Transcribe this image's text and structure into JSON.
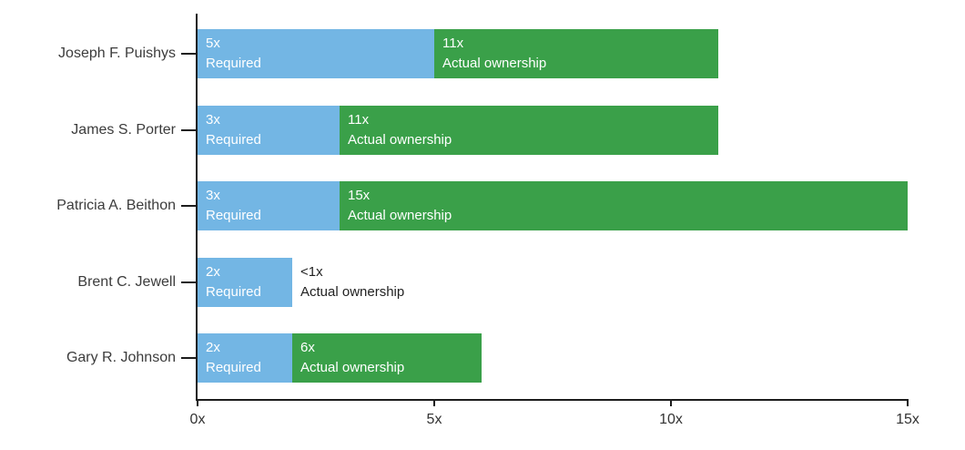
{
  "chart_data": {
    "type": "bar",
    "orientation": "horizontal",
    "title": "",
    "grid": false,
    "legend": "none",
    "colors": {
      "required": "#73B6E4",
      "actual": "#3AA049",
      "axis": "#1c1c1c",
      "bar_label_text": "#ffffff",
      "outside_label_text": "#222222",
      "category_text": "#3c3c3c"
    },
    "series_names": [
      "Required",
      "Actual ownership"
    ],
    "labels": {
      "required_line2": "Required",
      "actual_line2": "Actual ownership"
    },
    "rows": [
      {
        "category": "Joseph F. Puishys",
        "required": 5,
        "required_label": "5x",
        "actual": 11,
        "actual_label": "11x",
        "actual_inside": true
      },
      {
        "category": "James S. Porter",
        "required": 3,
        "required_label": "3x",
        "actual": 11,
        "actual_label": "11x",
        "actual_inside": true
      },
      {
        "category": "Patricia A. Beithon",
        "required": 3,
        "required_label": "3x",
        "actual": 15,
        "actual_label": "15x",
        "actual_inside": true
      },
      {
        "category": "Brent C. Jewell",
        "required": 2,
        "required_label": "2x",
        "actual": "<1",
        "actual_label": "<1x",
        "actual_inside": false
      },
      {
        "category": "Gary R. Johnson",
        "required": 2,
        "required_label": "2x",
        "actual": 6,
        "actual_label": "6x",
        "actual_inside": true
      }
    ],
    "x_axis": {
      "min": 0,
      "max": 15,
      "ticks": [
        {
          "value": 0,
          "label": "0x"
        },
        {
          "value": 5,
          "label": "5x"
        },
        {
          "value": 10,
          "label": "10x"
        },
        {
          "value": 15,
          "label": "15x"
        }
      ]
    }
  }
}
